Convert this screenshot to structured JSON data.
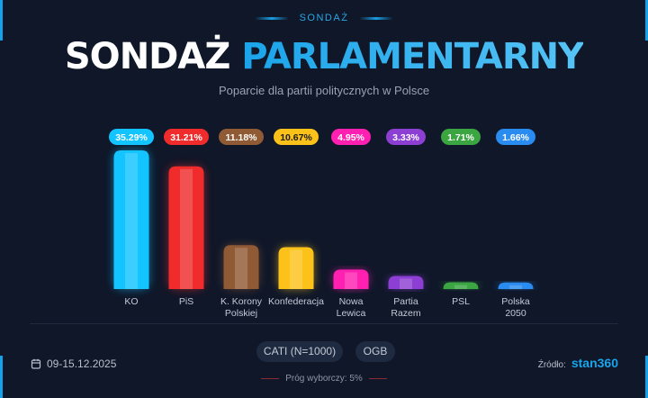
{
  "header": {
    "kicker": "SONDAŻ",
    "title_white": "SONDAŻ",
    "title_blue": "PARLAMENTARNY",
    "subtitle": "Poparcie dla partii politycznych w Polsce"
  },
  "chart_data": {
    "type": "bar",
    "categories": [
      [
        "KO"
      ],
      [
        "PiS"
      ],
      [
        "K. Korony",
        "Polskiej"
      ],
      [
        "Konfederacja"
      ],
      [
        "Nowa",
        "Lewica"
      ],
      [
        "Partia",
        "Razem"
      ],
      [
        "PSL"
      ],
      [
        "Polska",
        "2050"
      ]
    ],
    "values": [
      35.29,
      31.21,
      11.18,
      10.67,
      4.95,
      3.33,
      1.71,
      1.66
    ],
    "data_labels": [
      "35.29%",
      "31.21%",
      "11.18%",
      "10.67%",
      "4.95%",
      "3.33%",
      "1.71%",
      "1.66%"
    ],
    "colors": [
      "#12c4ff",
      "#ef2b2b",
      "#8f5a34",
      "#fcc21a",
      "#ff1fb0",
      "#8d3fd4",
      "#3aa541",
      "#2a8cf0"
    ],
    "label_text_colors": [
      "#ffffff",
      "#ffffff",
      "#ffffff",
      "#1a1a1a",
      "#ffffff",
      "#ffffff",
      "#ffffff",
      "#ffffff"
    ],
    "title": "",
    "xlabel": "",
    "ylabel": "",
    "ylim": [
      0,
      35.29
    ],
    "grid": false
  },
  "footer": {
    "date_icon": "calendar-icon",
    "date": "09-15.12.2025",
    "method": "CATI (N=1000)",
    "mode": "OGB",
    "threshold": "Próg wyborczy: 5%",
    "source_label": "Źródło:",
    "source": "stan360"
  }
}
